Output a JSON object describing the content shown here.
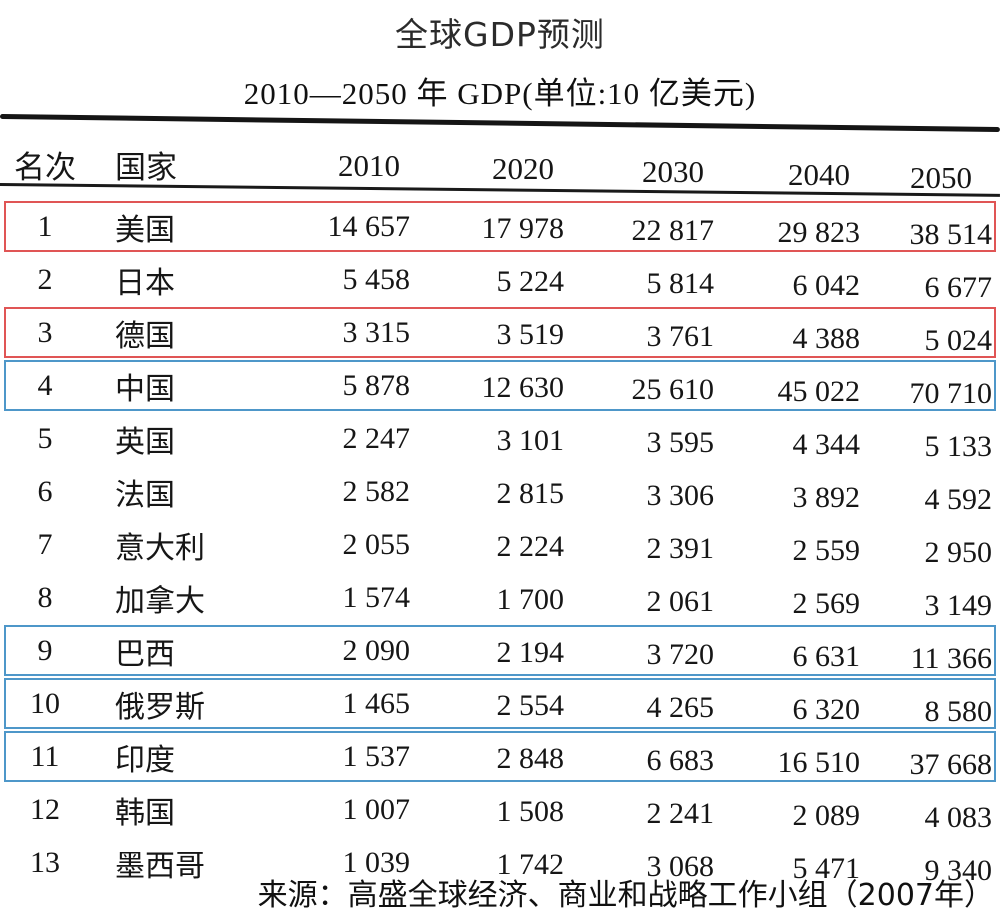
{
  "title": "全球GDP预测",
  "subtitle": "2010—2050 年 GDP(单位:10 亿美元)",
  "source": "来源：高盛全球经济、商业和战略工作小组（2007年）",
  "colors": {
    "highlight_red": "#e05555",
    "highlight_blue": "#4e97c9",
    "rule": "#151515"
  },
  "chart_data": {
    "type": "table",
    "title": "全球GDP预测",
    "subtitle": "2010—2050 年 GDP(单位:10 亿美元)",
    "unit": "10 亿美元",
    "columns": [
      "名次",
      "国家",
      "2010",
      "2020",
      "2030",
      "2040",
      "2050"
    ],
    "rows": [
      {
        "rank": "1",
        "country": "美国",
        "values": [
          "14 657",
          "17 978",
          "22 817",
          "29 823",
          "38 514"
        ],
        "highlight": "red"
      },
      {
        "rank": "2",
        "country": "日本",
        "values": [
          "5 458",
          "5 224",
          "5 814",
          "6 042",
          "6 677"
        ],
        "highlight": null
      },
      {
        "rank": "3",
        "country": "德国",
        "values": [
          "3 315",
          "3 519",
          "3 761",
          "4 388",
          "5 024"
        ],
        "highlight": "red"
      },
      {
        "rank": "4",
        "country": "中国",
        "values": [
          "5 878",
          "12 630",
          "25 610",
          "45 022",
          "70 710"
        ],
        "highlight": "blue"
      },
      {
        "rank": "5",
        "country": "英国",
        "values": [
          "2 247",
          "3 101",
          "3 595",
          "4 344",
          "5 133"
        ],
        "highlight": null
      },
      {
        "rank": "6",
        "country": "法国",
        "values": [
          "2 582",
          "2 815",
          "3 306",
          "3 892",
          "4 592"
        ],
        "highlight": null
      },
      {
        "rank": "7",
        "country": "意大利",
        "values": [
          "2 055",
          "2 224",
          "2 391",
          "2 559",
          "2 950"
        ],
        "highlight": null
      },
      {
        "rank": "8",
        "country": "加拿大",
        "values": [
          "1 574",
          "1 700",
          "2 061",
          "2 569",
          "3 149"
        ],
        "highlight": null
      },
      {
        "rank": "9",
        "country": "巴西",
        "values": [
          "2 090",
          "2 194",
          "3 720",
          "6 631",
          "11 366"
        ],
        "highlight": "blue"
      },
      {
        "rank": "10",
        "country": "俄罗斯",
        "values": [
          "1 465",
          "2 554",
          "4 265",
          "6 320",
          "8 580"
        ],
        "highlight": "blue"
      },
      {
        "rank": "11",
        "country": "印度",
        "values": [
          "1 537",
          "2 848",
          "6 683",
          "16 510",
          "37 668"
        ],
        "highlight": "blue"
      },
      {
        "rank": "12",
        "country": "韩国",
        "values": [
          "1 007",
          "1 508",
          "2 241",
          "2 089",
          "4 083"
        ],
        "highlight": null
      },
      {
        "rank": "13",
        "country": "墨西哥",
        "values": [
          "1 039",
          "1 742",
          "3 068",
          "5 471",
          "9 340"
        ],
        "highlight": null
      }
    ],
    "source": "来源：高盛全球经济、商业和战略工作小组（2007年）"
  }
}
